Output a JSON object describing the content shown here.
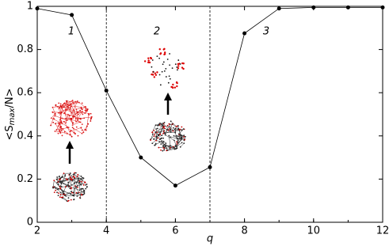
{
  "chart_data": {
    "type": "line",
    "xlabel": "q",
    "ylabel": [
      "<S",
      "max",
      "/N>"
    ],
    "x": [
      2,
      3,
      4,
      5,
      6,
      7,
      8,
      9,
      10,
      11,
      12
    ],
    "series": [
      {
        "color": "#000000",
        "values": [
          0.99,
          0.96,
          0.61,
          0.3,
          0.17,
          0.255,
          0.875,
          0.99,
          0.995,
          0.995,
          0.995
        ]
      }
    ],
    "xlim": [
      2,
      12
    ],
    "xticks": [
      2,
      4,
      6,
      8,
      10,
      12
    ],
    "ylim": [
      0,
      1
    ],
    "yticks": [
      0,
      0.2,
      0.4,
      0.6,
      0.8,
      1
    ],
    "vlines": [
      4,
      7
    ],
    "annotations": [
      "1",
      "2",
      "3"
    ],
    "grid": false
  }
}
